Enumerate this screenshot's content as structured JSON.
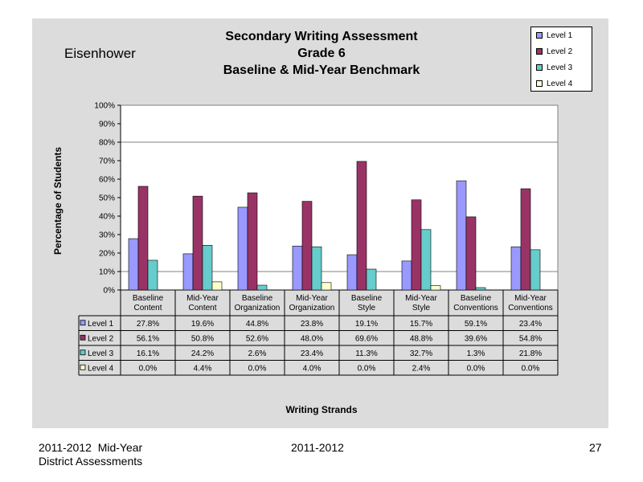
{
  "page": {
    "school": "Eisenhower",
    "footer_left_line1": "2011-2012  Mid-Year",
    "footer_left_line2": "District Assessments",
    "footer_center": "2011-2012",
    "page_number": "27"
  },
  "colors": {
    "panel_background": "#dcdcdc",
    "plot_background": "#ffffff"
  },
  "chart_data": {
    "type": "bar",
    "title": [
      "Secondary Writing Assessment",
      "Grade 6",
      "Baseline & Mid-Year Benchmark"
    ],
    "xlabel": "Writing Strands",
    "ylabel": "Percentage of Students",
    "ylim": [
      0,
      100
    ],
    "y_ticks": [
      "0%",
      "10%",
      "20%",
      "30%",
      "40%",
      "50%",
      "60%",
      "70%",
      "80%",
      "90%",
      "100%"
    ],
    "grid": "horizontal at 10%, 80%, 100%",
    "legend_position": "top-right",
    "categories": [
      [
        "Baseline",
        "Content"
      ],
      [
        "Mid-Year",
        "Content"
      ],
      [
        "Baseline",
        "Organization"
      ],
      [
        "Mid-Year",
        "Organization"
      ],
      [
        "Baseline",
        "Style"
      ],
      [
        "Mid-Year",
        "Style"
      ],
      [
        "Baseline",
        "Conventions"
      ],
      [
        "Mid-Year",
        "Conventions"
      ]
    ],
    "series": [
      {
        "name": "Level 1",
        "color": "#9999ff",
        "values": [
          27.8,
          19.6,
          44.8,
          23.8,
          19.1,
          15.7,
          59.1,
          23.4
        ],
        "labels": [
          "27.8%",
          "19.6%",
          "44.8%",
          "23.8%",
          "19.1%",
          "15.7%",
          "59.1%",
          "23.4%"
        ]
      },
      {
        "name": "Level 2",
        "color": "#993366",
        "values": [
          56.1,
          50.8,
          52.6,
          48.0,
          69.6,
          48.8,
          39.6,
          54.8
        ],
        "labels": [
          "56.1%",
          "50.8%",
          "52.6%",
          "48.0%",
          "69.6%",
          "48.8%",
          "39.6%",
          "54.8%"
        ]
      },
      {
        "name": "Level 3",
        "color": "#66cccc",
        "values": [
          16.1,
          24.2,
          2.6,
          23.4,
          11.3,
          32.7,
          1.3,
          21.8
        ],
        "labels": [
          "16.1%",
          "24.2%",
          "2.6%",
          "23.4%",
          "11.3%",
          "32.7%",
          "1.3%",
          "21.8%"
        ]
      },
      {
        "name": "Level 4",
        "color": "#ffffcc",
        "values": [
          0.0,
          4.4,
          0.0,
          4.0,
          0.0,
          2.4,
          0.0,
          0.0
        ],
        "labels": [
          "0.0%",
          "4.4%",
          "0.0%",
          "4.0%",
          "0.0%",
          "2.4%",
          "0.0%",
          "0.0%"
        ]
      }
    ]
  }
}
